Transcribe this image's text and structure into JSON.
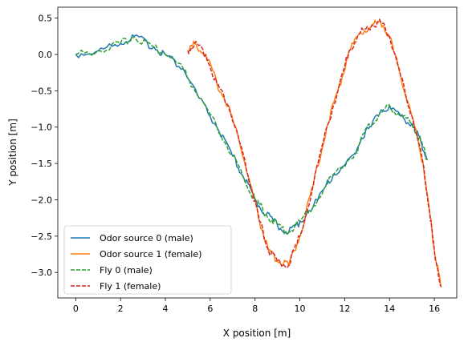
{
  "chart_data": {
    "type": "line",
    "title": "",
    "xlabel": "X position [m]",
    "ylabel": "Y position [m]",
    "xlim": [
      -0.8,
      17.0
    ],
    "ylim": [
      -3.35,
      0.65
    ],
    "xticks": [
      0,
      2,
      4,
      6,
      8,
      10,
      12,
      14,
      16
    ],
    "yticks": [
      0.5,
      0.0,
      -0.5,
      -1.0,
      -1.5,
      -2.0,
      -2.5,
      -3.0
    ],
    "xtick_labels": [
      "0",
      "2",
      "4",
      "6",
      "8",
      "10",
      "12",
      "14",
      "16"
    ],
    "ytick_labels": [
      "0.5",
      "0.0",
      "−0.5",
      "−1.0",
      "−1.5",
      "−2.0",
      "−2.5",
      "−3.0"
    ],
    "grid": false,
    "legend_position": "lower-left",
    "series": [
      {
        "name": "Odor source 0 (male)",
        "color": "#1f77b4",
        "dashed": false,
        "x": [
          0.0,
          1.0,
          2.0,
          2.6,
          3.5,
          4.0,
          4.8,
          5.5,
          6.3,
          7.0,
          7.5,
          8.0,
          8.5,
          9.0,
          9.5,
          10.0,
          10.8,
          11.5,
          12.5,
          13.0,
          13.5,
          14.0,
          14.5,
          15.0,
          15.4,
          15.7
        ],
        "y": [
          0.0,
          0.05,
          0.15,
          0.25,
          0.1,
          0.0,
          -0.2,
          -0.6,
          -1.0,
          -1.4,
          -1.7,
          -2.0,
          -2.2,
          -2.35,
          -2.45,
          -2.3,
          -2.0,
          -1.65,
          -1.35,
          -1.0,
          -0.85,
          -0.7,
          -0.85,
          -0.95,
          -1.2,
          -1.45
        ]
      },
      {
        "name": "Odor source 1 (female)",
        "color": "#ff7f0e",
        "dashed": false,
        "x": [
          5.0,
          5.3,
          5.8,
          6.3,
          6.8,
          7.3,
          7.8,
          8.2,
          8.6,
          9.0,
          9.5,
          10.0,
          10.6,
          11.2,
          11.7,
          12.2,
          12.7,
          13.2,
          13.6,
          14.0,
          14.5,
          15.0,
          15.5,
          15.8,
          16.0,
          16.3
        ],
        "y": [
          0.05,
          0.15,
          0.0,
          -0.4,
          -0.7,
          -1.2,
          -1.8,
          -2.3,
          -2.7,
          -2.85,
          -2.9,
          -2.5,
          -1.8,
          -1.0,
          -0.5,
          0.05,
          0.3,
          0.4,
          0.45,
          0.25,
          -0.3,
          -0.85,
          -1.5,
          -2.2,
          -2.7,
          -3.2
        ]
      },
      {
        "name": "Fly 0 (male)",
        "color": "#2ca02c",
        "dashed": true,
        "x": [
          0.0,
          1.0,
          2.0,
          2.6,
          3.5,
          4.0,
          4.8,
          5.5,
          6.3,
          7.0,
          7.5,
          8.0,
          8.5,
          9.0,
          9.5,
          10.0,
          10.8,
          11.5,
          12.5,
          13.0,
          13.5,
          14.0,
          14.5,
          15.0,
          15.4,
          15.7
        ],
        "y": [
          0.0,
          0.05,
          0.15,
          0.25,
          0.1,
          0.0,
          -0.2,
          -0.6,
          -1.0,
          -1.4,
          -1.7,
          -2.0,
          -2.2,
          -2.35,
          -2.45,
          -2.3,
          -2.0,
          -1.65,
          -1.35,
          -1.0,
          -0.85,
          -0.7,
          -0.85,
          -0.95,
          -1.2,
          -1.45
        ]
      },
      {
        "name": "Fly 1 (female)",
        "color": "#d62728",
        "dashed": true,
        "x": [
          5.0,
          5.3,
          5.8,
          6.3,
          6.8,
          7.3,
          7.8,
          8.2,
          8.6,
          9.0,
          9.5,
          10.0,
          10.6,
          11.2,
          11.7,
          12.2,
          12.7,
          13.2,
          13.6,
          14.0,
          14.5,
          15.0,
          15.5,
          15.8,
          16.0,
          16.3
        ],
        "y": [
          0.05,
          0.15,
          0.0,
          -0.4,
          -0.7,
          -1.2,
          -1.8,
          -2.3,
          -2.7,
          -2.85,
          -2.9,
          -2.5,
          -1.8,
          -1.0,
          -0.5,
          0.05,
          0.3,
          0.4,
          0.45,
          0.25,
          -0.3,
          -0.85,
          -1.5,
          -2.2,
          -2.7,
          -3.2
        ]
      }
    ]
  }
}
